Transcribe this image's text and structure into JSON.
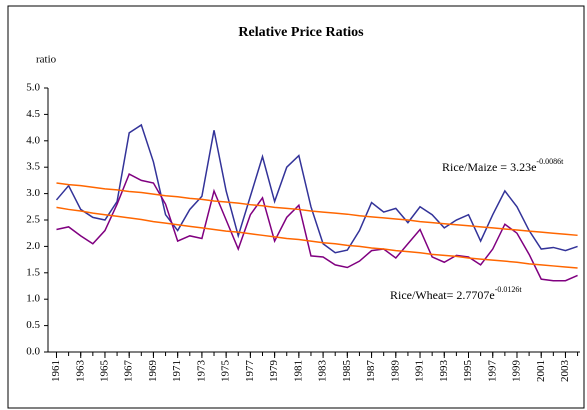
{
  "chart_data": {
    "type": "line",
    "title": "Relative Price Ratios",
    "ylabel": "ratio",
    "x": [
      1961,
      1962,
      1963,
      1964,
      1965,
      1966,
      1967,
      1968,
      1969,
      1970,
      1971,
      1972,
      1973,
      1974,
      1975,
      1976,
      1977,
      1978,
      1979,
      1980,
      1981,
      1982,
      1983,
      1984,
      1985,
      1986,
      1987,
      1988,
      1989,
      1990,
      1991,
      1992,
      1993,
      1994,
      1995,
      1996,
      1997,
      1998,
      1999,
      2000,
      2001,
      2002,
      2003,
      2004
    ],
    "xlim": [
      1960.3,
      2004.2
    ],
    "xticks": [
      1961,
      1963,
      1965,
      1967,
      1969,
      1971,
      1973,
      1975,
      1977,
      1979,
      1981,
      1983,
      1985,
      1987,
      1989,
      1991,
      1993,
      1995,
      1997,
      1999,
      2001,
      2003
    ],
    "ylim": [
      0,
      5
    ],
    "yticks": [
      {
        "value": 0,
        "label": "0.0"
      },
      {
        "value": 0.5,
        "label": "0.5"
      },
      {
        "value": 1,
        "label": "1.0"
      },
      {
        "value": 1.5,
        "label": "1.5"
      },
      {
        "value": 2,
        "label": "2.0"
      },
      {
        "value": 2.5,
        "label": "2.5"
      },
      {
        "value": 3,
        "label": "3.0"
      },
      {
        "value": 3.5,
        "label": "3.5"
      },
      {
        "value": 4,
        "label": "4.0"
      },
      {
        "value": 4.5,
        "label": "4.5"
      },
      {
        "value": 5,
        "label": "5.0"
      }
    ],
    "grid": false,
    "series": [
      {
        "color": "#333399",
        "values": [
          2.88,
          3.15,
          2.7,
          2.55,
          2.5,
          2.85,
          4.15,
          4.3,
          3.6,
          2.6,
          2.3,
          2.7,
          2.95,
          4.2,
          3.05,
          2.2,
          2.95,
          3.7,
          2.85,
          3.5,
          3.72,
          2.75,
          2.05,
          1.88,
          1.93,
          2.3,
          2.83,
          2.65,
          2.72,
          2.45,
          2.75,
          2.6,
          2.35,
          2.5,
          2.6,
          2.1,
          2.6,
          3.05,
          2.75,
          2.3,
          1.95,
          1.98,
          1.92,
          2.0
        ]
      },
      {
        "color": "#800080",
        "values": [
          2.32,
          2.37,
          2.2,
          2.05,
          2.3,
          2.8,
          3.37,
          3.25,
          3.2,
          2.8,
          2.1,
          2.2,
          2.15,
          3.05,
          2.5,
          1.95,
          2.6,
          2.92,
          2.1,
          2.55,
          2.78,
          1.82,
          1.8,
          1.65,
          1.6,
          1.72,
          1.92,
          1.95,
          1.78,
          2.05,
          2.32,
          1.8,
          1.7,
          1.83,
          1.8,
          1.65,
          1.95,
          2.42,
          2.25,
          1.85,
          1.38,
          1.35,
          1.35,
          1.45
        ]
      },
      {
        "color": "#FF6600",
        "values": [
          3.2,
          3.17,
          3.15,
          3.12,
          3.09,
          3.07,
          3.04,
          3.02,
          2.99,
          2.96,
          2.94,
          2.91,
          2.89,
          2.86,
          2.84,
          2.82,
          2.79,
          2.77,
          2.74,
          2.72,
          2.7,
          2.67,
          2.65,
          2.63,
          2.61,
          2.58,
          2.56,
          2.54,
          2.52,
          2.5,
          2.47,
          2.45,
          2.43,
          2.41,
          2.39,
          2.37,
          2.35,
          2.33,
          2.31,
          2.29,
          2.27,
          2.25,
          2.23,
          2.21
        ]
      },
      {
        "color": "#FF6600",
        "values": [
          2.74,
          2.7,
          2.67,
          2.63,
          2.6,
          2.57,
          2.54,
          2.51,
          2.47,
          2.44,
          2.41,
          2.38,
          2.35,
          2.32,
          2.29,
          2.27,
          2.24,
          2.21,
          2.18,
          2.15,
          2.13,
          2.1,
          2.07,
          2.05,
          2.02,
          2,
          1.97,
          1.95,
          1.92,
          1.9,
          1.88,
          1.85,
          1.83,
          1.81,
          1.78,
          1.76,
          1.74,
          1.72,
          1.7,
          1.67,
          1.65,
          1.63,
          1.61,
          1.59
        ]
      }
    ],
    "annotations": [
      {
        "text": "Rice/Maize = 3.23e",
        "sup": "-0.0086t"
      },
      {
        "text": "Rice/Wheat= 2.7707e",
        "sup": "-0.0126t"
      }
    ]
  }
}
